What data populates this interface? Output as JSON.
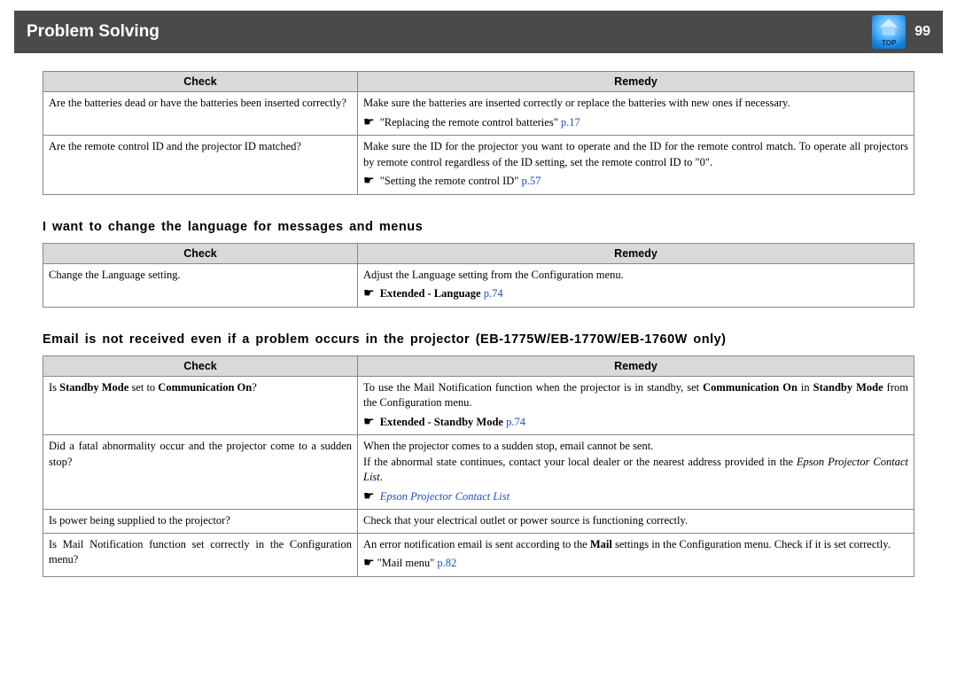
{
  "header": {
    "title": "Problem Solving",
    "page_number": "99",
    "top_icon_label": "TOP"
  },
  "columns": {
    "check": "Check",
    "remedy": "Remedy"
  },
  "table1": {
    "rows": [
      {
        "check": "Are the batteries dead or have the batteries been inserted correctly?",
        "remedy_text": "Make sure the batteries are inserted correctly or replace the batteries with new ones if necessary.",
        "remedy_ref_prefix": "\"Replacing the remote control batteries\" ",
        "remedy_ref_link": "p.17"
      },
      {
        "check": "Are the remote control ID and the projector ID matched?",
        "remedy_text": "Make sure the ID for the projector you want to operate and the ID for the remote control match. To operate all projectors by remote control regardless of the ID setting, set the remote control ID to \"0\".",
        "remedy_ref_prefix": "\"Setting the remote control ID\" ",
        "remedy_ref_link": "p.57"
      }
    ]
  },
  "section2": {
    "heading": "I want to change the language for messages and menus",
    "rows": [
      {
        "check": "Change  the  Language  setting.",
        "remedy_text": "Adjust  the  Language  setting  from  the  Configuration  menu.",
        "remedy_ref_bold": "Extended  -  Language ",
        "remedy_ref_link": "p.74"
      }
    ]
  },
  "section3": {
    "heading": "Email is not received even if a problem occurs in the projector (EB-1775W/EB-1770W/EB-1760W only)",
    "rows": [
      {
        "check_pre": "Is ",
        "check_bold": "Standby Mode",
        "check_mid": " set to ",
        "check_bold2": "Communication On",
        "check_post": "?",
        "remedy_pre": "To use the Mail Notification function when the projector is in standby, set ",
        "remedy_bold1": "Communication On",
        "remedy_mid1": " in ",
        "remedy_bold2": "Standby Mode",
        "remedy_post": " from the Configuration menu.",
        "remedy_ref_bold": "Extended - Standby Mode ",
        "remedy_ref_link": "p.74"
      },
      {
        "check": "Did a fatal abnormality occur and the projector come to a sudden stop?",
        "remedy_line1": "When the projector comes to a sudden stop, email cannot be sent.",
        "remedy_line2_pre": "If the abnormal state continues, contact your local dealer or the nearest address provided in the ",
        "remedy_line2_italic": "Epson Projector Contact List",
        "remedy_line2_post": ".",
        "remedy_ref_italic_link": "Epson Projector Contact List"
      },
      {
        "check": "Is power being supplied to the projector?",
        "remedy_text": "Check that your electrical outlet or power source is functioning correctly."
      },
      {
        "check": "Is Mail Notification function set correctly in the Configuration menu?",
        "remedy_pre": "An error notification email is sent according to the ",
        "remedy_bold": "Mail",
        "remedy_post": " settings in the Configuration menu. Check if it is set correctly.",
        "remedy_ref_prefix": "\"Mail menu\" ",
        "remedy_ref_link": "p.82"
      }
    ]
  },
  "colors": {
    "header_bg": "#4a4a4a",
    "th_bg": "#d9d9d9",
    "border": "#888888",
    "link": "#1a4fc9",
    "text": "#000000"
  }
}
